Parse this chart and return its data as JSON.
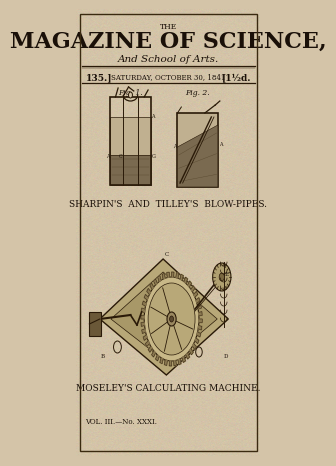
{
  "bg_color": "#c8b89a",
  "page_bg": "#d4c4a8",
  "title_the": "THE",
  "title_main": "MAGAZINE OF SCIENCE,",
  "title_sub": "And School of Arts.",
  "header_left": "135.]",
  "header_center": "SATURDAY, OCTOBER 30, 1841",
  "header_right": "[1½d.",
  "caption1": "SHARPIN'S  AND  TILLEY'S  BLOW-PIPES.",
  "caption2": "MOSELEY'S CALCULATING MACHINE.",
  "footer": "VOL. III.—No. XXXI.",
  "fig1_label": "Fig. 1.",
  "fig2_label": "Fig. 2.",
  "text_color": "#1a1008",
  "line_color": "#2a1a08",
  "border_color": "#3a2a10"
}
